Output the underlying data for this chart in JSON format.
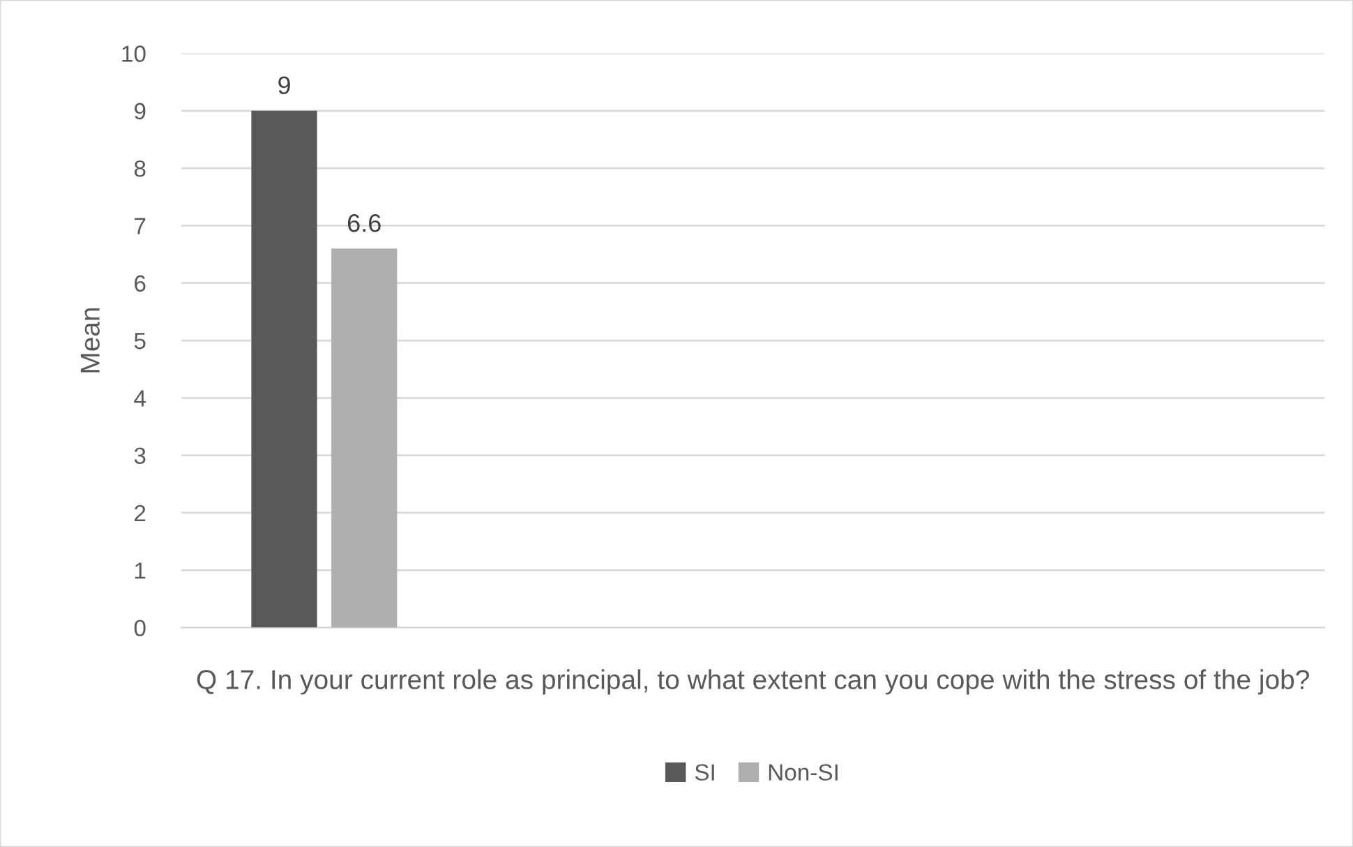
{
  "chart_data": {
    "type": "bar",
    "xlabel": "Q 17. In your current role as principal, to what extent can you cope with the stress of the job?",
    "ylabel": "Mean",
    "categories": [
      null,
      null,
      null,
      null
    ],
    "series": [
      {
        "name": "SI",
        "color": "#595959",
        "values": [
          9,
          null,
          null,
          null
        ]
      },
      {
        "name": "Non-SI",
        "color": "#afafaf",
        "values": [
          6.6,
          null,
          null,
          null
        ]
      }
    ],
    "ylim": [
      0,
      10
    ],
    "yticks": [
      0,
      1,
      2,
      3,
      4,
      5,
      6,
      7,
      8,
      9,
      10
    ],
    "grid": "y",
    "data_labels": true,
    "legend": "bottom"
  }
}
